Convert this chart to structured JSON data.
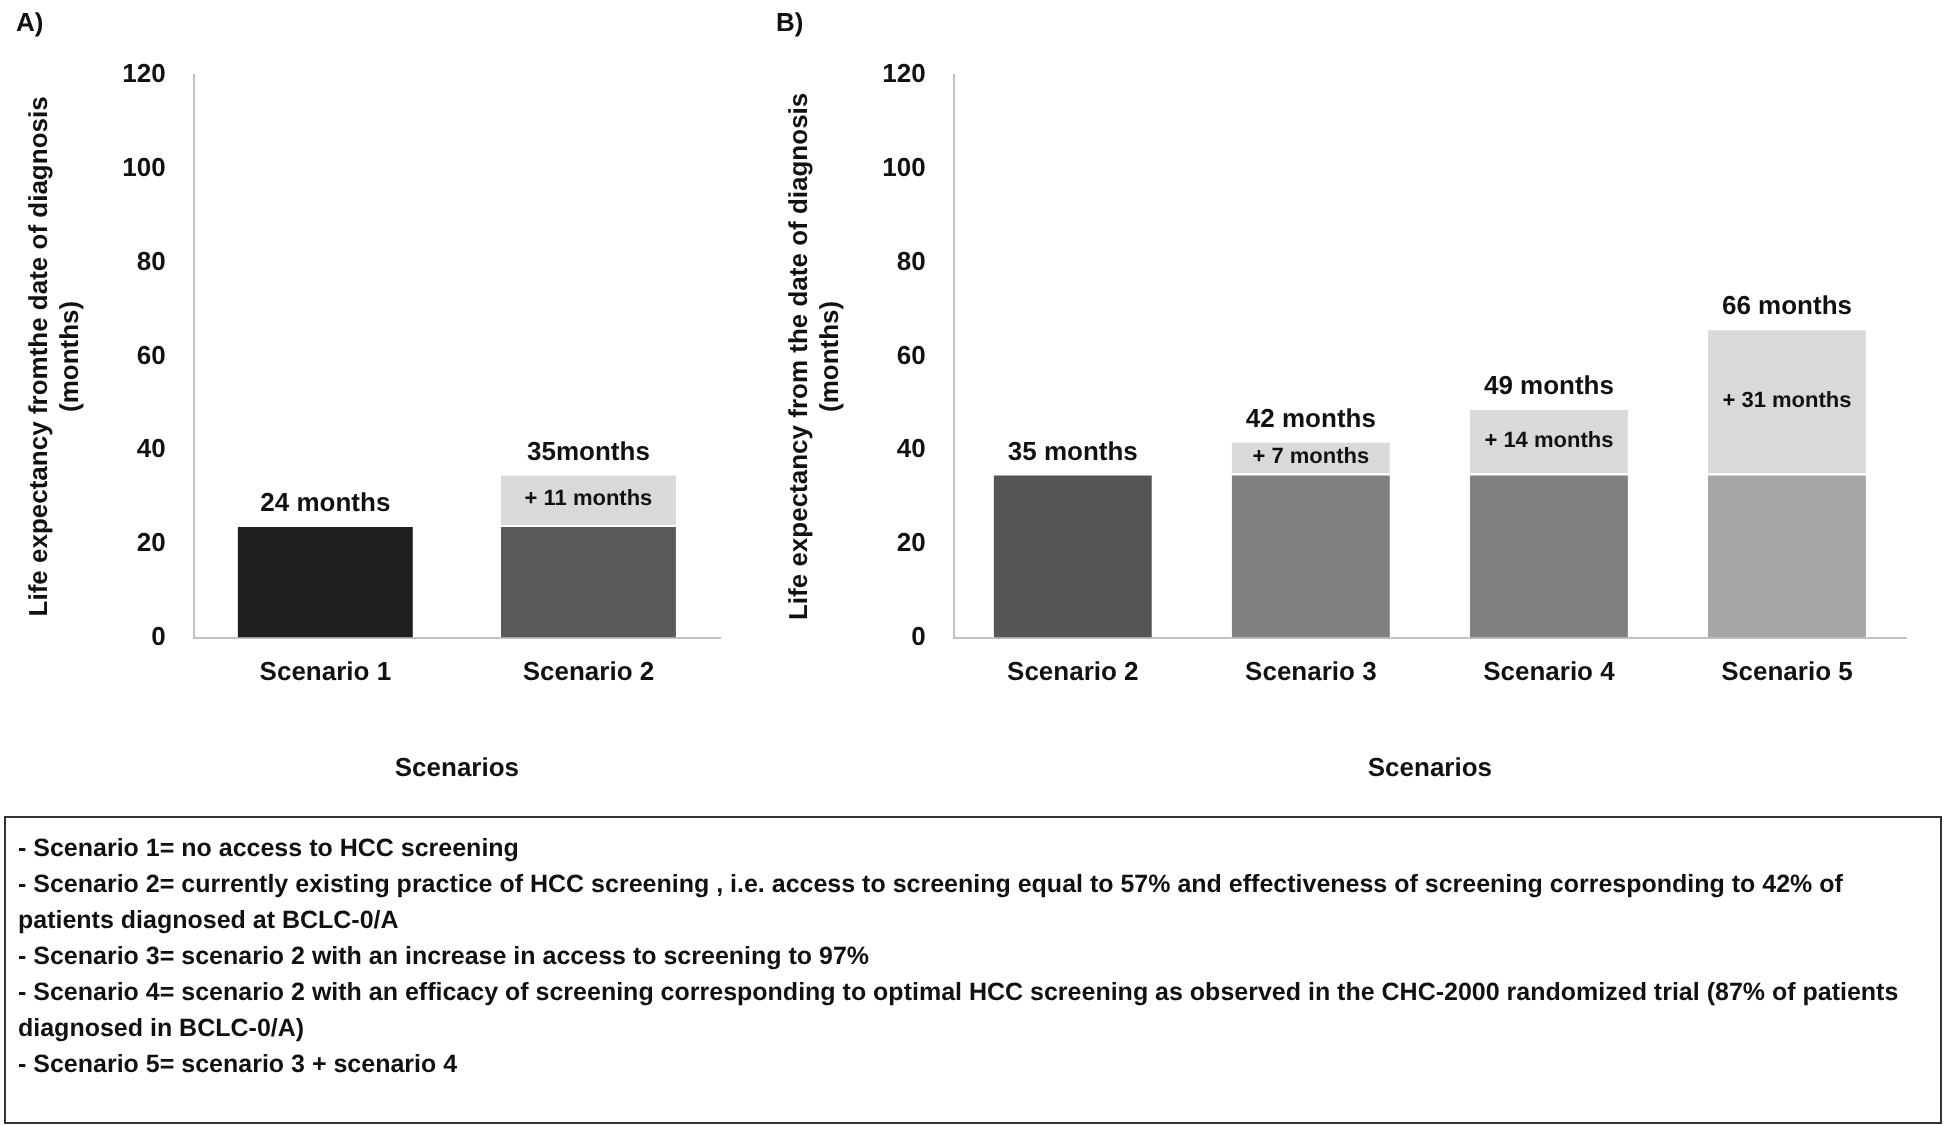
{
  "chart_data": [
    {
      "type": "bar",
      "title": "A)",
      "ylabel": "Life expectancy fromthe date of diagnosis (months)",
      "xlabel": "Scenarios",
      "categories": [
        "Scenario 1",
        "Scenario 2"
      ],
      "stacked": true,
      "ylim": [
        0,
        120
      ],
      "yticks": [
        0,
        20,
        40,
        60,
        80,
        100,
        120
      ],
      "series": [
        {
          "colors": [
            "#1e1e1e",
            "#595959"
          ],
          "values": [
            24,
            24
          ]
        },
        {
          "color": "#d9d9d9",
          "values": [
            null,
            11
          ],
          "value_labels": [
            null,
            "+ 11 months"
          ]
        }
      ],
      "totals": [
        "24 months",
        "35months"
      ]
    },
    {
      "type": "bar",
      "title": "B)",
      "ylabel": "Life expectancy from the date of diagnosis (months)",
      "xlabel": "Scenarios",
      "categories": [
        "Scenario 2",
        "Scenario 3",
        "Scenario 4",
        "Scenario 5"
      ],
      "stacked": true,
      "ylim": [
        0,
        120
      ],
      "yticks": [
        0,
        20,
        40,
        60,
        80,
        100,
        120
      ],
      "series": [
        {
          "colors": [
            "#555555",
            "#808080",
            "#808080",
            "#a6a6a6"
          ],
          "values": [
            35,
            35,
            35,
            35
          ]
        },
        {
          "color": "#d9d9d9",
          "values": [
            null,
            7,
            14,
            31
          ],
          "value_labels": [
            null,
            "+ 7 months",
            "+ 14 months",
            "+ 31 months"
          ]
        }
      ],
      "totals": [
        "35 months",
        "42 months",
        "49 months",
        "66 months"
      ]
    },
    {
      "type": "other",
      "annotations": [
        "- Scenario 1= no access to HCC screening",
        "- Scenario 2= currently existing practice of HCC screening , i.e. access to screening equal to 57% and effectiveness of screening corresponding to 42% of patients diagnosed at BCLC-0/A",
        "- Scenario 3= scenario 2 with an increase in access to screening to 97%",
        "- Scenario 4= scenario 2 with an efficacy of screening corresponding to optimal HCC screening as observed in the CHC-2000 randomized trial (87% of patients diagnosed in BCLC-0/A)",
        "- Scenario 5= scenario 3 + scenario 4"
      ]
    }
  ]
}
